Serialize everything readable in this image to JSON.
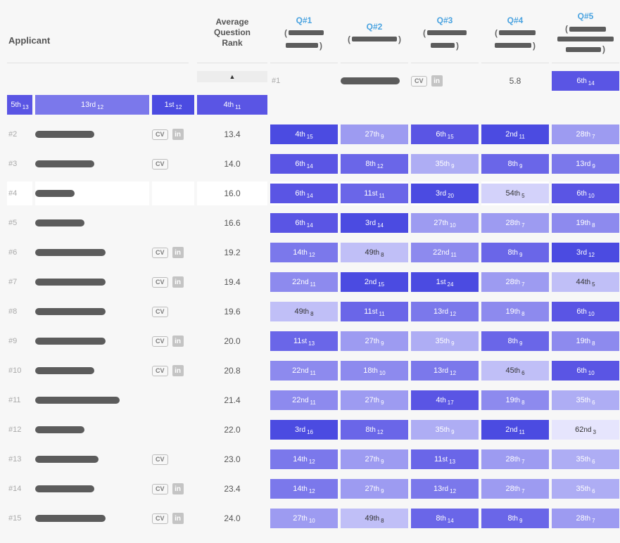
{
  "colors": {
    "scale": [
      "#4b4be1",
      "#5a55e4",
      "#6a66e8",
      "#7b78eb",
      "#8d8aee",
      "#9d9bf1",
      "#aeadf4",
      "#c0bff7",
      "#d3d2fa",
      "#e6e5fd"
    ],
    "textDarkThreshold": 7
  },
  "header": {
    "applicant": "Applicant",
    "avg_line1": "Average",
    "avg_line2": "Question",
    "avg_line3": "Rank",
    "questions": [
      {
        "label": "Q#1",
        "redactWidths": [
          [
            50
          ],
          [
            46
          ]
        ]
      },
      {
        "label": "Q#2",
        "redactWidths": [
          [
            64
          ]
        ]
      },
      {
        "label": "Q#3",
        "redactWidths": [
          [
            56
          ],
          [
            34
          ]
        ]
      },
      {
        "label": "Q#4",
        "redactWidths": [
          [
            52
          ],
          [
            52
          ]
        ]
      },
      {
        "label": "Q#5",
        "redactWidths": [
          [
            52
          ],
          [
            80
          ],
          [
            50
          ]
        ]
      }
    ],
    "sort_indicator": "▲"
  },
  "rows": [
    {
      "rank": "#1",
      "nameW": 84,
      "cv": true,
      "li": true,
      "avg": "5.8",
      "hl": false,
      "cells": [
        {
          "r": "6",
          "s": "th",
          "sub": "14",
          "shade": 1
        },
        {
          "r": "5",
          "s": "th",
          "sub": "13",
          "shade": 1
        },
        {
          "r": "13",
          "s": "rd",
          "sub": "12",
          "shade": 3
        },
        {
          "r": "1",
          "s": "st",
          "sub": "12",
          "shade": 0
        },
        {
          "r": "4",
          "s": "th",
          "sub": "11",
          "shade": 1
        }
      ]
    },
    {
      "rank": "#2",
      "nameW": 84,
      "cv": true,
      "li": true,
      "avg": "13.4",
      "hl": false,
      "cells": [
        {
          "r": "4",
          "s": "th",
          "sub": "15",
          "shade": 0
        },
        {
          "r": "27",
          "s": "th",
          "sub": "9",
          "shade": 5
        },
        {
          "r": "6",
          "s": "th",
          "sub": "15",
          "shade": 1
        },
        {
          "r": "2",
          "s": "nd",
          "sub": "11",
          "shade": 0
        },
        {
          "r": "28",
          "s": "th",
          "sub": "7",
          "shade": 5
        }
      ]
    },
    {
      "rank": "#3",
      "nameW": 84,
      "cv": true,
      "li": false,
      "avg": "14.0",
      "hl": false,
      "cells": [
        {
          "r": "6",
          "s": "th",
          "sub": "14",
          "shade": 1
        },
        {
          "r": "8",
          "s": "th",
          "sub": "12",
          "shade": 2
        },
        {
          "r": "35",
          "s": "th",
          "sub": "9",
          "shade": 6
        },
        {
          "r": "8",
          "s": "th",
          "sub": "9",
          "shade": 2
        },
        {
          "r": "13",
          "s": "rd",
          "sub": "9",
          "shade": 3
        }
      ]
    },
    {
      "rank": "#4",
      "nameW": 56,
      "cv": false,
      "li": false,
      "avg": "16.0",
      "hl": true,
      "cells": [
        {
          "r": "6",
          "s": "th",
          "sub": "14",
          "shade": 1
        },
        {
          "r": "11",
          "s": "st",
          "sub": "11",
          "shade": 2
        },
        {
          "r": "3",
          "s": "rd",
          "sub": "20",
          "shade": 0
        },
        {
          "r": "54",
          "s": "th",
          "sub": "5",
          "shade": 8
        },
        {
          "r": "6",
          "s": "th",
          "sub": "10",
          "shade": 1
        }
      ]
    },
    {
      "rank": "#5",
      "nameW": 70,
      "cv": false,
      "li": false,
      "avg": "16.6",
      "hl": false,
      "cells": [
        {
          "r": "6",
          "s": "th",
          "sub": "14",
          "shade": 1
        },
        {
          "r": "3",
          "s": "rd",
          "sub": "14",
          "shade": 0
        },
        {
          "r": "27",
          "s": "th",
          "sub": "10",
          "shade": 5
        },
        {
          "r": "28",
          "s": "th",
          "sub": "7",
          "shade": 5
        },
        {
          "r": "19",
          "s": "th",
          "sub": "8",
          "shade": 4
        }
      ]
    },
    {
      "rank": "#6",
      "nameW": 100,
      "cv": true,
      "li": true,
      "avg": "19.2",
      "hl": false,
      "cells": [
        {
          "r": "14",
          "s": "th",
          "sub": "12",
          "shade": 3
        },
        {
          "r": "49",
          "s": "th",
          "sub": "8",
          "shade": 7
        },
        {
          "r": "22",
          "s": "nd",
          "sub": "11",
          "shade": 4
        },
        {
          "r": "8",
          "s": "th",
          "sub": "9",
          "shade": 2
        },
        {
          "r": "3",
          "s": "rd",
          "sub": "12",
          "shade": 0
        }
      ]
    },
    {
      "rank": "#7",
      "nameW": 100,
      "cv": true,
      "li": true,
      "avg": "19.4",
      "hl": false,
      "cells": [
        {
          "r": "22",
          "s": "nd",
          "sub": "11",
          "shade": 4
        },
        {
          "r": "2",
          "s": "nd",
          "sub": "15",
          "shade": 0
        },
        {
          "r": "1",
          "s": "st",
          "sub": "24",
          "shade": 0
        },
        {
          "r": "28",
          "s": "th",
          "sub": "7",
          "shade": 5
        },
        {
          "r": "44",
          "s": "th",
          "sub": "5",
          "shade": 7
        }
      ]
    },
    {
      "rank": "#8",
      "nameW": 100,
      "cv": true,
      "li": false,
      "avg": "19.6",
      "hl": false,
      "cells": [
        {
          "r": "49",
          "s": "th",
          "sub": "8",
          "shade": 7
        },
        {
          "r": "11",
          "s": "st",
          "sub": "11",
          "shade": 2
        },
        {
          "r": "13",
          "s": "rd",
          "sub": "12",
          "shade": 3
        },
        {
          "r": "19",
          "s": "th",
          "sub": "8",
          "shade": 4
        },
        {
          "r": "6",
          "s": "th",
          "sub": "10",
          "shade": 1
        }
      ]
    },
    {
      "rank": "#9",
      "nameW": 100,
      "cv": true,
      "li": true,
      "avg": "20.0",
      "hl": false,
      "cells": [
        {
          "r": "11",
          "s": "st",
          "sub": "13",
          "shade": 2
        },
        {
          "r": "27",
          "s": "th",
          "sub": "9",
          "shade": 5
        },
        {
          "r": "35",
          "s": "th",
          "sub": "9",
          "shade": 6
        },
        {
          "r": "8",
          "s": "th",
          "sub": "9",
          "shade": 2
        },
        {
          "r": "19",
          "s": "th",
          "sub": "8",
          "shade": 4
        }
      ]
    },
    {
      "rank": "#10",
      "nameW": 84,
      "cv": true,
      "li": true,
      "avg": "20.8",
      "hl": false,
      "cells": [
        {
          "r": "22",
          "s": "nd",
          "sub": "11",
          "shade": 4
        },
        {
          "r": "18",
          "s": "th",
          "sub": "10",
          "shade": 4
        },
        {
          "r": "13",
          "s": "rd",
          "sub": "12",
          "shade": 3
        },
        {
          "r": "45",
          "s": "th",
          "sub": "6",
          "shade": 7
        },
        {
          "r": "6",
          "s": "th",
          "sub": "10",
          "shade": 1
        }
      ]
    },
    {
      "rank": "#11",
      "nameW": 120,
      "cv": false,
      "li": false,
      "avg": "21.4",
      "hl": false,
      "cells": [
        {
          "r": "22",
          "s": "nd",
          "sub": "11",
          "shade": 4
        },
        {
          "r": "27",
          "s": "th",
          "sub": "9",
          "shade": 5
        },
        {
          "r": "4",
          "s": "th",
          "sub": "17",
          "shade": 1
        },
        {
          "r": "19",
          "s": "th",
          "sub": "8",
          "shade": 4
        },
        {
          "r": "35",
          "s": "th",
          "sub": "6",
          "shade": 6
        }
      ]
    },
    {
      "rank": "#12",
      "nameW": 70,
      "cv": false,
      "li": false,
      "avg": "22.0",
      "hl": false,
      "cells": [
        {
          "r": "3",
          "s": "rd",
          "sub": "16",
          "shade": 0
        },
        {
          "r": "8",
          "s": "th",
          "sub": "12",
          "shade": 2
        },
        {
          "r": "35",
          "s": "th",
          "sub": "9",
          "shade": 6
        },
        {
          "r": "2",
          "s": "nd",
          "sub": "11",
          "shade": 0
        },
        {
          "r": "62",
          "s": "nd",
          "sub": "3",
          "shade": 9
        }
      ]
    },
    {
      "rank": "#13",
      "nameW": 90,
      "cv": true,
      "li": false,
      "avg": "23.0",
      "hl": false,
      "cells": [
        {
          "r": "14",
          "s": "th",
          "sub": "12",
          "shade": 3
        },
        {
          "r": "27",
          "s": "th",
          "sub": "9",
          "shade": 5
        },
        {
          "r": "11",
          "s": "st",
          "sub": "13",
          "shade": 2
        },
        {
          "r": "28",
          "s": "th",
          "sub": "7",
          "shade": 5
        },
        {
          "r": "35",
          "s": "th",
          "sub": "6",
          "shade": 6
        }
      ]
    },
    {
      "rank": "#14",
      "nameW": 84,
      "cv": true,
      "li": true,
      "avg": "23.4",
      "hl": false,
      "cells": [
        {
          "r": "14",
          "s": "th",
          "sub": "12",
          "shade": 3
        },
        {
          "r": "27",
          "s": "th",
          "sub": "9",
          "shade": 5
        },
        {
          "r": "13",
          "s": "rd",
          "sub": "12",
          "shade": 3
        },
        {
          "r": "28",
          "s": "th",
          "sub": "7",
          "shade": 5
        },
        {
          "r": "35",
          "s": "th",
          "sub": "6",
          "shade": 6
        }
      ]
    },
    {
      "rank": "#15",
      "nameW": 100,
      "cv": true,
      "li": true,
      "avg": "24.0",
      "hl": false,
      "cells": [
        {
          "r": "27",
          "s": "th",
          "sub": "10",
          "shade": 5
        },
        {
          "r": "49",
          "s": "th",
          "sub": "8",
          "shade": 7
        },
        {
          "r": "8",
          "s": "th",
          "sub": "14",
          "shade": 2
        },
        {
          "r": "8",
          "s": "th",
          "sub": "9",
          "shade": 2
        },
        {
          "r": "28",
          "s": "th",
          "sub": "7",
          "shade": 5
        }
      ]
    }
  ]
}
